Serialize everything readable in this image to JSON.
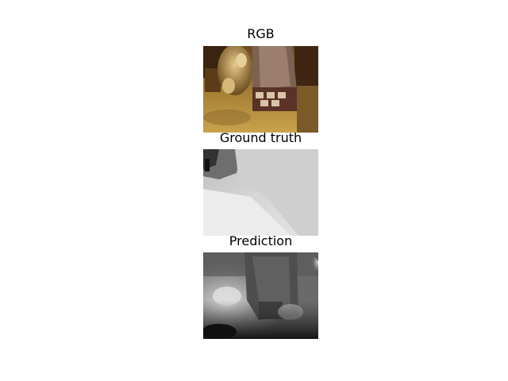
{
  "panels": [
    {
      "title": "RGB",
      "kind": "rgb"
    },
    {
      "title": "Ground truth",
      "kind": "depth-ground-truth"
    },
    {
      "title": "Prediction",
      "kind": "depth-prediction"
    }
  ],
  "colors": {
    "background": "#ffffff",
    "rgb_floor": "#b08a3a",
    "rgb_dark": "#4a2e12",
    "gt_light": "#dcdcdc",
    "pred_dark": "#1c1c1c"
  }
}
